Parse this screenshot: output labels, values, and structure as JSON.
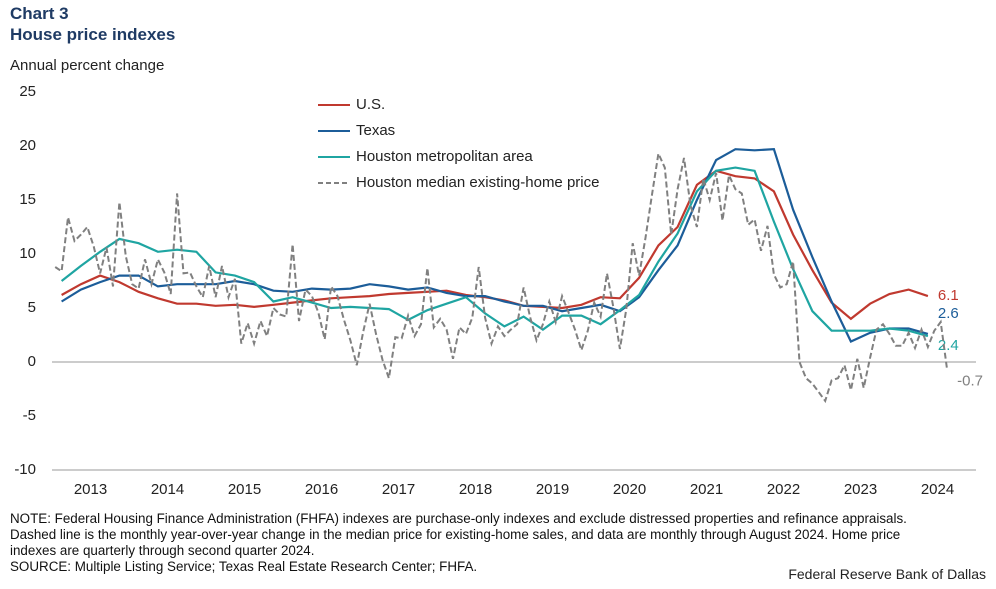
{
  "chart_data": {
    "type": "line",
    "title": "Chart 3",
    "subtitle": "House price indexes",
    "y_label": "Annual percent change",
    "note": "NOTE: Federal Housing Finance Administration (FHFA) indexes are purchase-only indexes and exclude distressed properties and refinance appraisals. Dashed line is the monthly year-over-year change in the median price for existing-home sales, and data are monthly through August 2024. Home price indexes are quarterly through second quarter 2024.",
    "source": "SOURCE: Multiple Listing Service; Texas Real Estate Research Center; FHFA.",
    "credit": "Federal Reserve Bank of Dallas",
    "xlim": [
      2013,
      2025
    ],
    "xticks": [
      {
        "value": 2013.5,
        "label": "2013"
      },
      {
        "value": 2014.5,
        "label": "2014"
      },
      {
        "value": 2015.5,
        "label": "2015"
      },
      {
        "value": 2016.5,
        "label": "2016"
      },
      {
        "value": 2017.5,
        "label": "2017"
      },
      {
        "value": 2018.5,
        "label": "2018"
      },
      {
        "value": 2019.5,
        "label": "2019"
      },
      {
        "value": 2020.5,
        "label": "2020"
      },
      {
        "value": 2021.5,
        "label": "2021"
      },
      {
        "value": 2022.5,
        "label": "2022"
      },
      {
        "value": 2023.5,
        "label": "2023"
      },
      {
        "value": 2024.5,
        "label": "2024"
      }
    ],
    "ylim": [
      -10,
      25
    ],
    "yticks": [
      -10,
      -5,
      0,
      5,
      10,
      15,
      20,
      25
    ],
    "legend": "upper-left",
    "series": [
      {
        "name": "U.S.",
        "color": "#c0392f",
        "dashed": false,
        "frequency": "quarterly",
        "values": [
          6.2,
          7.2,
          8.0,
          7.4,
          6.5,
          5.9,
          5.4,
          5.4,
          5.2,
          5.3,
          5.1,
          5.3,
          5.5,
          5.7,
          5.9,
          6.0,
          6.1,
          6.3,
          6.4,
          6.5,
          6.6,
          6.2,
          6.0,
          5.7,
          5.2,
          5.1,
          5.0,
          5.3,
          6.0,
          5.9,
          7.8,
          10.8,
          12.5,
          16.4,
          17.7,
          17.2,
          17.0,
          15.8,
          11.8,
          8.5,
          5.5,
          4.0,
          5.4,
          6.3,
          6.7,
          6.1
        ]
      },
      {
        "name": "Texas",
        "color": "#1c5d99",
        "dashed": false,
        "frequency": "quarterly",
        "values": [
          5.6,
          6.7,
          7.4,
          8.0,
          8.0,
          7.0,
          7.2,
          7.2,
          7.2,
          7.5,
          7.2,
          6.6,
          6.5,
          6.8,
          6.7,
          6.8,
          7.2,
          7.0,
          6.7,
          6.9,
          6.4,
          6.1,
          6.1,
          5.6,
          5.2,
          5.2,
          4.7,
          5.0,
          5.3,
          4.7,
          6.0,
          8.5,
          10.8,
          15.0,
          18.7,
          19.7,
          19.6,
          19.7,
          14.1,
          9.7,
          5.6,
          1.9,
          2.7,
          3.1,
          3.1,
          2.6
        ]
      },
      {
        "name": "Houston metropolitan area",
        "color": "#1fa5a2",
        "dashed": false,
        "frequency": "quarterly",
        "values": [
          7.5,
          8.9,
          10.2,
          11.4,
          11.0,
          10.2,
          10.4,
          10.2,
          8.3,
          8.0,
          7.4,
          5.6,
          6.0,
          5.5,
          5.0,
          5.1,
          5.0,
          4.9,
          3.9,
          4.8,
          5.4,
          6.0,
          4.5,
          3.3,
          4.2,
          3.0,
          4.3,
          4.3,
          3.5,
          4.8,
          6.2,
          9.3,
          11.9,
          15.8,
          17.7,
          18.0,
          17.7,
          13.0,
          8.6,
          4.7,
          2.9,
          2.9,
          2.9,
          3.1,
          2.9,
          2.4
        ]
      },
      {
        "name": "Houston median existing-home price",
        "color": "#808080",
        "dashed": true,
        "frequency": "monthly",
        "values": [
          8.8,
          8.4,
          13.4,
          11.2,
          11.8,
          12.5,
          10.7,
          8.2,
          10.6,
          7.0,
          14.8,
          9.8,
          7.2,
          6.8,
          9.5,
          7.2,
          9.5,
          8.3,
          6.3,
          15.6,
          8.2,
          8.3,
          7.0,
          6.0,
          8.9,
          6.0,
          8.9,
          6.0,
          7.7,
          1.7,
          3.6,
          1.7,
          3.8,
          2.4,
          5.0,
          4.4,
          4.2,
          10.9,
          3.8,
          6.7,
          6.1,
          4.6,
          2.1,
          7.0,
          6.1,
          3.9,
          2.0,
          -0.3,
          2.8,
          5.4,
          2.6,
          0.2,
          -1.5,
          2.3,
          2.2,
          4.3,
          2.4,
          3.5,
          8.7,
          3.2,
          4.0,
          3.0,
          0.3,
          3.2,
          2.6,
          4.1,
          8.8,
          4.1,
          1.7,
          3.3,
          2.4,
          3.0,
          3.5,
          6.9,
          4.2,
          2.0,
          3.5,
          5.6,
          3.7,
          6.1,
          4.6,
          3.0,
          1.1,
          2.9,
          5.5,
          4.2,
          8.2,
          5.0,
          1.2,
          4.9,
          11.0,
          8.0,
          11.5,
          15.5,
          19.3,
          18.0,
          11.8,
          16.0,
          18.9,
          14.5,
          12.5,
          17.0,
          15.0,
          17.5,
          13.1,
          17.3,
          16.0,
          15.6,
          12.7,
          13.2,
          10.3,
          12.6,
          8.1,
          6.9,
          7.2,
          9.3,
          0.0,
          -1.5,
          -2.0,
          -2.8,
          -3.6,
          -1.7,
          -1.5,
          -0.3,
          -2.6,
          0.3,
          -2.4,
          0.4,
          3.0,
          3.5,
          2.6,
          1.5,
          1.5,
          2.7,
          1.3,
          3.0,
          1.4,
          2.9,
          3.7,
          -0.7
        ]
      }
    ]
  }
}
